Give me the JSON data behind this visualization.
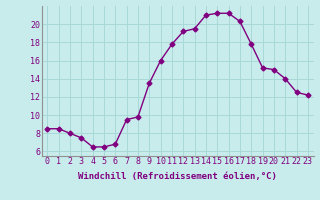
{
  "x": [
    0,
    1,
    2,
    3,
    4,
    5,
    6,
    7,
    8,
    9,
    10,
    11,
    12,
    13,
    14,
    15,
    16,
    17,
    18,
    19,
    20,
    21,
    22,
    23
  ],
  "y": [
    8.5,
    8.5,
    8.0,
    7.5,
    6.5,
    6.5,
    6.8,
    9.5,
    9.8,
    13.5,
    16.0,
    17.8,
    19.2,
    19.5,
    21.0,
    21.2,
    21.2,
    20.3,
    17.8,
    15.2,
    15.0,
    14.0,
    12.5,
    12.2
  ],
  "line_color": "#800080",
  "bg_color": "#c8ecec",
  "grid_color": "#a8d8d8",
  "xlabel": "Windchill (Refroidissement éolien,°C)",
  "ylim": [
    5.5,
    22.0
  ],
  "xlim": [
    -0.5,
    23.5
  ],
  "yticks": [
    6,
    8,
    10,
    12,
    14,
    16,
    18,
    20
  ],
  "xticks": [
    0,
    1,
    2,
    3,
    4,
    5,
    6,
    7,
    8,
    9,
    10,
    11,
    12,
    13,
    14,
    15,
    16,
    17,
    18,
    19,
    20,
    21,
    22,
    23
  ],
  "marker": "D",
  "markersize": 2.5,
  "linewidth": 1.0,
  "xlabel_fontsize": 6.5,
  "tick_fontsize": 6.0
}
